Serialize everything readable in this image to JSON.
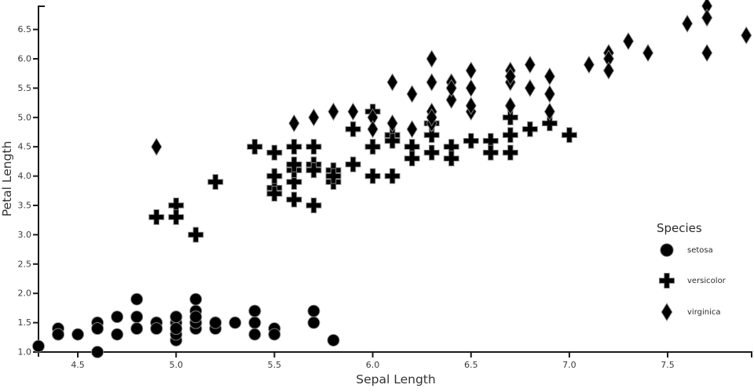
{
  "chart_data": {
    "type": "scatter",
    "xlabel": "Sepal Length",
    "ylabel": "Petal Length",
    "xlim": [
      4.3,
      7.93
    ],
    "ylim": [
      0.92,
      6.9
    ],
    "grid": false,
    "marker_color": "#000000",
    "x_ticks": [
      4.5,
      5.0,
      5.5,
      6.0,
      6.5,
      7.0,
      7.5
    ],
    "x_tick_labels": [
      "4.5",
      "5.0",
      "5.5",
      "6.0",
      "6.5",
      "7.0",
      "7.5"
    ],
    "y_ticks": [
      1.0,
      1.5,
      2.0,
      2.5,
      3.0,
      3.5,
      4.0,
      4.5,
      5.0,
      5.5,
      6.0,
      6.5
    ],
    "y_tick_labels": [
      "1.0",
      "1.5",
      "2.0",
      "2.5",
      "3.0",
      "3.5",
      "4.0",
      "4.5",
      "5.0",
      "5.5",
      "6.0",
      "6.5"
    ],
    "legend": {
      "title": "Species",
      "position": "right",
      "items": [
        {
          "label": "setosa",
          "marker": "circle"
        },
        {
          "label": "versicolor",
          "marker": "plus"
        },
        {
          "label": "virginica",
          "marker": "diamond"
        }
      ]
    },
    "series": [
      {
        "name": "setosa",
        "marker": "circle",
        "points": [
          [
            5.1,
            1.4
          ],
          [
            4.9,
            1.4
          ],
          [
            4.7,
            1.3
          ],
          [
            4.6,
            1.5
          ],
          [
            5.0,
            1.4
          ],
          [
            5.4,
            1.7
          ],
          [
            4.6,
            1.4
          ],
          [
            5.0,
            1.5
          ],
          [
            4.4,
            1.4
          ],
          [
            4.9,
            1.5
          ],
          [
            5.4,
            1.5
          ],
          [
            4.8,
            1.6
          ],
          [
            4.8,
            1.4
          ],
          [
            4.3,
            1.1
          ],
          [
            5.8,
            1.2
          ],
          [
            5.7,
            1.5
          ],
          [
            5.4,
            1.3
          ],
          [
            5.1,
            1.4
          ],
          [
            5.7,
            1.7
          ],
          [
            5.1,
            1.5
          ],
          [
            5.4,
            1.7
          ],
          [
            5.1,
            1.5
          ],
          [
            4.6,
            1.0
          ],
          [
            5.1,
            1.7
          ],
          [
            4.8,
            1.9
          ],
          [
            5.0,
            1.6
          ],
          [
            5.0,
            1.6
          ],
          [
            5.2,
            1.5
          ],
          [
            5.2,
            1.4
          ],
          [
            4.7,
            1.6
          ],
          [
            4.8,
            1.6
          ],
          [
            5.4,
            1.5
          ],
          [
            5.2,
            1.5
          ],
          [
            5.5,
            1.4
          ],
          [
            4.9,
            1.5
          ],
          [
            5.0,
            1.2
          ],
          [
            5.5,
            1.3
          ],
          [
            4.9,
            1.4
          ],
          [
            4.4,
            1.3
          ],
          [
            5.1,
            1.5
          ],
          [
            5.0,
            1.3
          ],
          [
            4.5,
            1.3
          ],
          [
            4.4,
            1.3
          ],
          [
            5.0,
            1.6
          ],
          [
            5.1,
            1.9
          ],
          [
            4.8,
            1.4
          ],
          [
            5.1,
            1.6
          ],
          [
            4.6,
            1.4
          ],
          [
            5.3,
            1.5
          ],
          [
            5.0,
            1.4
          ]
        ]
      },
      {
        "name": "versicolor",
        "marker": "plus",
        "points": [
          [
            7.0,
            4.7
          ],
          [
            6.4,
            4.5
          ],
          [
            6.9,
            4.9
          ],
          [
            5.5,
            4.0
          ],
          [
            6.5,
            4.6
          ],
          [
            5.7,
            4.5
          ],
          [
            6.3,
            4.7
          ],
          [
            4.9,
            3.3
          ],
          [
            6.6,
            4.6
          ],
          [
            5.2,
            3.9
          ],
          [
            5.0,
            3.5
          ],
          [
            5.9,
            4.2
          ],
          [
            6.0,
            4.0
          ],
          [
            6.1,
            4.7
          ],
          [
            5.6,
            3.6
          ],
          [
            6.7,
            4.4
          ],
          [
            5.6,
            4.5
          ],
          [
            5.8,
            4.1
          ],
          [
            6.2,
            4.5
          ],
          [
            5.6,
            3.9
          ],
          [
            5.9,
            4.8
          ],
          [
            6.1,
            4.0
          ],
          [
            6.3,
            4.9
          ],
          [
            6.1,
            4.7
          ],
          [
            6.4,
            4.3
          ],
          [
            6.6,
            4.4
          ],
          [
            6.8,
            4.8
          ],
          [
            6.7,
            5.0
          ],
          [
            6.0,
            4.5
          ],
          [
            5.7,
            3.5
          ],
          [
            5.5,
            3.8
          ],
          [
            5.5,
            3.7
          ],
          [
            5.8,
            3.9
          ],
          [
            6.0,
            5.1
          ],
          [
            5.4,
            4.5
          ],
          [
            6.0,
            4.5
          ],
          [
            6.7,
            4.7
          ],
          [
            6.3,
            4.4
          ],
          [
            5.6,
            4.1
          ],
          [
            5.5,
            4.0
          ],
          [
            5.5,
            4.4
          ],
          [
            6.1,
            4.6
          ],
          [
            5.8,
            4.0
          ],
          [
            5.0,
            3.3
          ],
          [
            5.6,
            4.2
          ],
          [
            5.7,
            4.2
          ],
          [
            5.7,
            4.2
          ],
          [
            6.2,
            4.3
          ],
          [
            5.1,
            3.0
          ],
          [
            5.7,
            4.1
          ]
        ]
      },
      {
        "name": "virginica",
        "marker": "diamond",
        "points": [
          [
            6.3,
            6.0
          ],
          [
            5.8,
            5.1
          ],
          [
            7.1,
            5.9
          ],
          [
            6.3,
            5.6
          ],
          [
            6.5,
            5.8
          ],
          [
            7.6,
            6.6
          ],
          [
            4.9,
            4.5
          ],
          [
            7.3,
            6.3
          ],
          [
            6.7,
            5.8
          ],
          [
            7.2,
            6.1
          ],
          [
            6.5,
            5.1
          ],
          [
            6.4,
            5.3
          ],
          [
            6.8,
            5.5
          ],
          [
            5.7,
            5.0
          ],
          [
            5.8,
            5.1
          ],
          [
            6.4,
            5.3
          ],
          [
            6.5,
            5.5
          ],
          [
            7.7,
            6.7
          ],
          [
            7.7,
            6.9
          ],
          [
            6.0,
            5.0
          ],
          [
            6.9,
            5.7
          ],
          [
            5.6,
            4.9
          ],
          [
            7.7,
            6.7
          ],
          [
            6.3,
            4.9
          ],
          [
            6.7,
            5.7
          ],
          [
            7.2,
            6.0
          ],
          [
            6.2,
            4.8
          ],
          [
            6.1,
            4.9
          ],
          [
            6.4,
            5.6
          ],
          [
            7.2,
            5.8
          ],
          [
            7.4,
            6.1
          ],
          [
            7.9,
            6.4
          ],
          [
            6.4,
            5.6
          ],
          [
            6.3,
            5.1
          ],
          [
            6.1,
            5.6
          ],
          [
            7.7,
            6.1
          ],
          [
            6.3,
            5.6
          ],
          [
            6.4,
            5.5
          ],
          [
            6.0,
            4.8
          ],
          [
            6.9,
            5.4
          ],
          [
            6.7,
            5.6
          ],
          [
            6.9,
            5.1
          ],
          [
            5.8,
            5.1
          ],
          [
            6.8,
            5.9
          ],
          [
            6.7,
            5.7
          ],
          [
            6.7,
            5.2
          ],
          [
            6.3,
            5.0
          ],
          [
            6.5,
            5.2
          ],
          [
            6.2,
            5.4
          ],
          [
            5.9,
            5.1
          ]
        ]
      }
    ]
  }
}
